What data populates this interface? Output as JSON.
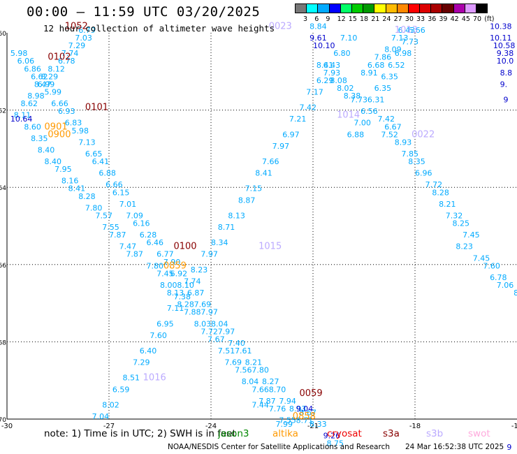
{
  "title": "00:00 – 11:59 UTC 03/20/2025",
  "subtitle": "12 hour collection of altimeter wave heights",
  "colorbar": {
    "labels": [
      "3",
      "6",
      "9",
      "12",
      "15",
      "18",
      "21",
      "24",
      "27",
      "30",
      "33",
      "36",
      "39",
      "42",
      "45",
      "70",
      "(ft)"
    ],
    "colors": [
      "#777777",
      "#00ffff",
      "#00aaff",
      "#0000ff",
      "#00ff66",
      "#00cc00",
      "#009900",
      "#ffff00",
      "#ffbb00",
      "#ff8800",
      "#ff0000",
      "#dd0000",
      "#aa0000",
      "#660000",
      "#aa00aa",
      "#dd99ff",
      "#000000"
    ]
  },
  "footer": {
    "note": "note:  1) Time is in UTC;  2) SWH is in feet",
    "missions": [
      {
        "name": "jason3",
        "color": "#008800"
      },
      {
        "name": "altika",
        "color": "#ff9900"
      },
      {
        "name": "cryosat",
        "color": "#ee0000"
      },
      {
        "name": "s3a",
        "color": "#880000"
      },
      {
        "name": "s3b",
        "color": "#bbaaff"
      },
      {
        "name": "swot",
        "color": "#ffaadd"
      }
    ],
    "credit": "NOAA/NESDIS Center for Satellite Applications and Research",
    "generated": "24 Mar 16:52:38 UTC 2025"
  },
  "chart_data": {
    "type": "scatter",
    "xlim": [
      -30,
      -15
    ],
    "ylim": [
      -70,
      -60
    ],
    "x_ticks": [
      "-30",
      "-27",
      "-24",
      "-21",
      "-18",
      "-15"
    ],
    "y_ticks": [
      "-60",
      "-62",
      "-64",
      "-66",
      "-68",
      "-70"
    ],
    "grid": true,
    "point_color": "#00aaff",
    "series": [
      {
        "points": [
          [
            -27.9,
            -60.0,
            "6.79"
          ],
          [
            -28.0,
            -60.2,
            "7.03"
          ],
          [
            -28.2,
            -60.4,
            "7.29"
          ],
          [
            -28.4,
            -60.6,
            "7.74"
          ],
          [
            -28.5,
            -60.8,
            "6.78"
          ],
          [
            -28.8,
            -61.0,
            "8.12"
          ],
          [
            -29.0,
            -61.2,
            "8.29"
          ],
          [
            -29.2,
            -61.4,
            "8.47"
          ],
          [
            -29.4,
            -61.7,
            "8.98"
          ],
          [
            -29.6,
            -61.9,
            "8.62"
          ],
          [
            -29.8,
            -62.2,
            "8.11"
          ],
          [
            -29.5,
            -62.5,
            "8.60"
          ],
          [
            -29.3,
            -62.8,
            "8.35"
          ],
          [
            -29.1,
            -63.1,
            "8.40"
          ],
          [
            -28.9,
            -63.4,
            "8.40"
          ],
          [
            -28.6,
            -63.6,
            "7.95"
          ],
          [
            -28.4,
            -63.9,
            "8.16"
          ],
          [
            -28.2,
            -64.1,
            "8.41"
          ],
          [
            -27.9,
            -64.3,
            "8.28"
          ],
          [
            -27.7,
            -64.6,
            "7.80"
          ],
          [
            -27.4,
            -64.8,
            "7.57"
          ],
          [
            -27.2,
            -65.1,
            "7.55"
          ],
          [
            -27.0,
            -65.3,
            "7.87"
          ],
          [
            -26.7,
            -65.6,
            "7.47"
          ],
          [
            -26.5,
            -65.8,
            "7.87"
          ],
          [
            -25.9,
            -66.1,
            "7.80"
          ],
          [
            -25.6,
            -66.3,
            "7.45"
          ],
          [
            -25.5,
            -66.6,
            "8.00"
          ],
          [
            -25.3,
            -66.8,
            "8.13"
          ],
          [
            -25.0,
            -67.1,
            "8.28"
          ],
          [
            -24.8,
            -67.3,
            "7.88"
          ],
          [
            -24.5,
            -67.6,
            "8.03"
          ],
          [
            -24.3,
            -67.8,
            "7.72"
          ],
          [
            -24.1,
            -68.0,
            "7.67"
          ],
          [
            -23.8,
            -68.3,
            "7.51"
          ],
          [
            -23.6,
            -68.6,
            "7.69"
          ],
          [
            -23.3,
            -68.8,
            "7.56"
          ],
          [
            -23.1,
            -69.1,
            "8.04"
          ],
          [
            -22.8,
            -69.3,
            "7.66"
          ],
          [
            -22.6,
            -69.6,
            "7.87"
          ],
          [
            -22.3,
            -69.8,
            "7.76"
          ],
          [
            -22.0,
            -70.1,
            "7.55"
          ]
        ]
      },
      {
        "points": [
          [
            -29.9,
            -60.6,
            "5.98"
          ],
          [
            -29.7,
            -60.8,
            "6.06"
          ],
          [
            -29.5,
            -61.0,
            "6.86"
          ],
          [
            -29.3,
            -61.2,
            "6.62"
          ],
          [
            -29.1,
            -61.4,
            "6.99"
          ],
          [
            -28.9,
            -61.6,
            "5.99"
          ],
          [
            -28.7,
            -61.9,
            "6.66"
          ],
          [
            -28.5,
            -62.1,
            "6.93"
          ],
          [
            -28.3,
            -62.4,
            "6.83"
          ],
          [
            -28.1,
            -62.6,
            "5.98"
          ],
          [
            -27.9,
            -62.9,
            "7.13"
          ],
          [
            -27.7,
            -63.2,
            "6.65"
          ],
          [
            -27.5,
            -63.4,
            "6.41"
          ],
          [
            -27.3,
            -63.7,
            "6.88"
          ],
          [
            -27.1,
            -64.0,
            "6.66"
          ],
          [
            -26.9,
            -64.2,
            "6.15"
          ],
          [
            -26.7,
            -64.5,
            "7.01"
          ],
          [
            -26.5,
            -64.8,
            "7.09"
          ],
          [
            -26.3,
            -65.0,
            "6.16"
          ],
          [
            -26.1,
            -65.3,
            "6.28"
          ],
          [
            -25.9,
            -65.5,
            "6.46"
          ],
          [
            -25.6,
            -65.8,
            "6.77"
          ],
          [
            -25.4,
            -66.0,
            "7.90"
          ],
          [
            -25.2,
            -66.3,
            "6.92"
          ],
          [
            -25.0,
            -66.6,
            "8.10"
          ],
          [
            -24.7,
            -66.8,
            "6.87"
          ],
          [
            -24.5,
            -67.1,
            "7.69"
          ],
          [
            -24.3,
            -67.3,
            "7.97"
          ],
          [
            -24.0,
            -67.6,
            "8.04"
          ],
          [
            -23.8,
            -67.8,
            "7.97"
          ],
          [
            -23.5,
            -68.1,
            "7.40"
          ],
          [
            -23.3,
            -68.3,
            "7.61"
          ],
          [
            -23.0,
            -68.6,
            "8.21"
          ],
          [
            -22.8,
            -68.8,
            "7.80"
          ],
          [
            -22.5,
            -69.1,
            "8.27"
          ],
          [
            -22.3,
            -69.3,
            "8.70"
          ],
          [
            -22.0,
            -69.6,
            "7.94"
          ],
          [
            -21.7,
            -69.8,
            "8.93"
          ],
          [
            -21.5,
            -70.1,
            "8.71"
          ]
        ]
      },
      {
        "points": [
          [
            -27.5,
            -70.0,
            "7.04"
          ],
          [
            -27.2,
            -69.7,
            "8.02"
          ],
          [
            -26.9,
            -69.3,
            "6.59"
          ],
          [
            -26.6,
            -69.0,
            "8.51"
          ],
          [
            -26.3,
            -68.6,
            "7.29"
          ],
          [
            -26.1,
            -68.3,
            "6.40"
          ],
          [
            -25.8,
            -67.9,
            "7.60"
          ],
          [
            -25.6,
            -67.6,
            "6.95"
          ],
          [
            -25.3,
            -67.2,
            "7.11"
          ],
          [
            -25.1,
            -66.9,
            "7.38"
          ],
          [
            -24.8,
            -66.5,
            "7.74"
          ],
          [
            -24.6,
            -66.2,
            "8.23"
          ],
          [
            -24.3,
            -65.8,
            "7.97"
          ],
          [
            -24.0,
            -65.5,
            "8.34"
          ],
          [
            -23.8,
            -65.1,
            "8.71"
          ],
          [
            -23.5,
            -64.8,
            "8.13"
          ],
          [
            -23.2,
            -64.4,
            "8.87"
          ],
          [
            -23.0,
            -64.1,
            "7.15"
          ],
          [
            -22.7,
            -63.7,
            "8.41"
          ],
          [
            -22.5,
            -63.4,
            "7.66"
          ],
          [
            -22.2,
            -63.0,
            "7.97"
          ],
          [
            -21.9,
            -62.7,
            "6.97"
          ],
          [
            -21.7,
            -62.3,
            "7.21"
          ],
          [
            -21.4,
            -62.0,
            "7.42"
          ],
          [
            -21.2,
            -61.6,
            "7.17"
          ],
          [
            -20.9,
            -61.3,
            "6.29"
          ],
          [
            -20.7,
            -60.9,
            "6.43"
          ],
          [
            -20.4,
            -60.6,
            "6.80"
          ],
          [
            -20.2,
            -60.2,
            "7.10"
          ]
        ]
      },
      {
        "points": [
          [
            -20.0,
            -62.7,
            "6.88"
          ],
          [
            -19.8,
            -62.4,
            "7.00"
          ],
          [
            -19.6,
            -62.1,
            "6.56"
          ],
          [
            -19.4,
            -61.8,
            "6.31"
          ],
          [
            -19.2,
            -61.5,
            "6.35"
          ],
          [
            -19.0,
            -61.2,
            "6.35"
          ],
          [
            -18.8,
            -60.9,
            "6.52"
          ],
          [
            -18.6,
            -60.6,
            "6.98"
          ],
          [
            -18.4,
            -60.3,
            "7.73"
          ],
          [
            -18.2,
            -60.0,
            "6.66"
          ]
        ]
      }
    ],
    "labels": [
      {
        "x": -28.3,
        "y": -59.9,
        "text": "1052",
        "color": "#880000"
      },
      {
        "x": -28.8,
        "y": -60.7,
        "text": "0102",
        "color": "#880000"
      },
      {
        "x": -27.7,
        "y": -62.0,
        "text": "0101",
        "color": "#880000"
      },
      {
        "x": -28.9,
        "y": -62.5,
        "text": "0901",
        "color": "#ff9900"
      },
      {
        "x": -28.8,
        "y": -62.7,
        "text": "0900",
        "color": "#ff9900"
      },
      {
        "x": -25.1,
        "y": -65.6,
        "text": "0100",
        "color": "#880000"
      },
      {
        "x": -25.4,
        "y": -66.1,
        "text": "0859",
        "color": "#ff9900"
      },
      {
        "x": -21.4,
        "y": -69.4,
        "text": "0059",
        "color": "#880000"
      },
      {
        "x": -21.6,
        "y": -70.0,
        "text": "0858",
        "color": "#ff9900"
      },
      {
        "x": -22.3,
        "y": -59.9,
        "text": "0023",
        "color": "#bbaaff"
      },
      {
        "x": -18.6,
        "y": -60.0,
        "text": "1013",
        "color": "#bbaaff"
      },
      {
        "x": -20.3,
        "y": -62.2,
        "text": "1014",
        "color": "#bbaaff"
      },
      {
        "x": -18.1,
        "y": -62.7,
        "text": "0022",
        "color": "#bbaaff"
      },
      {
        "x": -22.6,
        "y": -65.6,
        "text": "1015",
        "color": "#bbaaff"
      },
      {
        "x": -26.0,
        "y": -69.0,
        "text": "1016",
        "color": "#bbaaff"
      }
    ],
    "blue_values": [
      {
        "x": -21.1,
        "y": -60.2,
        "text": "9.61"
      },
      {
        "x": -21.0,
        "y": -60.4,
        "text": "10.10"
      },
      {
        "x": -29.9,
        "y": -62.3,
        "text": "10.64"
      },
      {
        "x": -15.8,
        "y": -59.9,
        "text": "10.38"
      },
      {
        "x": -15.8,
        "y": -60.2,
        "text": "10.11"
      },
      {
        "x": -15.7,
        "y": -60.4,
        "text": "10.58"
      },
      {
        "x": -15.6,
        "y": -60.6,
        "text": "9.38"
      },
      {
        "x": -15.6,
        "y": -60.8,
        "text": "10.0"
      },
      {
        "x": -15.5,
        "y": -61.1,
        "text": "8.8"
      },
      {
        "x": -15.5,
        "y": -61.4,
        "text": "9."
      },
      {
        "x": -15.4,
        "y": -61.8,
        "text": "9"
      },
      {
        "x": -21.5,
        "y": -69.8,
        "text": "9.04"
      },
      {
        "x": -20.7,
        "y": -70.5,
        "text": "9.26"
      },
      {
        "x": -15.3,
        "y": -70.8,
        "text": "9"
      }
    ],
    "right_track": [
      {
        "x": -21.1,
        "y": -59.9,
        "text": "8.84"
      },
      {
        "x": -20.9,
        "y": -60.9,
        "text": "8.41"
      },
      {
        "x": -20.7,
        "y": -61.1,
        "text": "7.93"
      },
      {
        "x": -20.5,
        "y": -61.3,
        "text": "8.08"
      },
      {
        "x": -20.3,
        "y": -61.5,
        "text": "8.02"
      },
      {
        "x": -20.1,
        "y": -61.7,
        "text": "8.38"
      },
      {
        "x": -19.9,
        "y": -61.8,
        "text": "7.73"
      },
      {
        "x": -19.6,
        "y": -61.1,
        "text": "8.91"
      },
      {
        "x": -19.4,
        "y": -60.9,
        "text": "6.68"
      },
      {
        "x": -19.2,
        "y": -60.7,
        "text": "7.86"
      },
      {
        "x": -18.9,
        "y": -60.5,
        "text": "8.09"
      },
      {
        "x": -18.7,
        "y": -60.2,
        "text": "7.13"
      },
      {
        "x": -18.5,
        "y": -60.0,
        "text": "6.43"
      },
      {
        "x": -19.1,
        "y": -62.3,
        "text": "7.42"
      },
      {
        "x": -18.9,
        "y": -62.5,
        "text": "6.67"
      },
      {
        "x": -19.0,
        "y": -62.7,
        "text": "7.52"
      },
      {
        "x": -18.6,
        "y": -62.9,
        "text": "8.93"
      },
      {
        "x": -18.4,
        "y": -63.2,
        "text": "7.85"
      },
      {
        "x": -18.2,
        "y": -63.4,
        "text": "8.35"
      },
      {
        "x": -18.0,
        "y": -63.7,
        "text": "6.96"
      },
      {
        "x": -17.7,
        "y": -64.0,
        "text": "7.72"
      },
      {
        "x": -17.5,
        "y": -64.2,
        "text": "8.28"
      },
      {
        "x": -17.3,
        "y": -64.5,
        "text": "8.21"
      },
      {
        "x": -17.1,
        "y": -64.8,
        "text": "7.32"
      },
      {
        "x": -16.9,
        "y": -65.0,
        "text": "8.25"
      },
      {
        "x": -16.6,
        "y": -65.3,
        "text": "7.45"
      },
      {
        "x": -16.8,
        "y": -65.6,
        "text": "8.23"
      },
      {
        "x": -16.3,
        "y": -65.9,
        "text": "7.45"
      },
      {
        "x": -16.0,
        "y": -66.1,
        "text": "7.60"
      },
      {
        "x": -15.8,
        "y": -66.4,
        "text": "6.78"
      },
      {
        "x": -15.6,
        "y": -66.6,
        "text": "7.06"
      },
      {
        "x": -15.1,
        "y": -66.8,
        "text": "8.3"
      },
      {
        "x": -15.0,
        "y": -67.1,
        "text": "7"
      },
      {
        "x": -21.4,
        "y": -69.9,
        "text": "8.67"
      },
      {
        "x": -21.1,
        "y": -70.2,
        "text": "8.33"
      },
      {
        "x": -20.6,
        "y": -70.7,
        "text": "8.75"
      },
      {
        "x": -22.1,
        "y": -70.2,
        "text": "7.99"
      },
      {
        "x": -22.8,
        "y": -69.7,
        "text": "7.44"
      }
    ]
  }
}
